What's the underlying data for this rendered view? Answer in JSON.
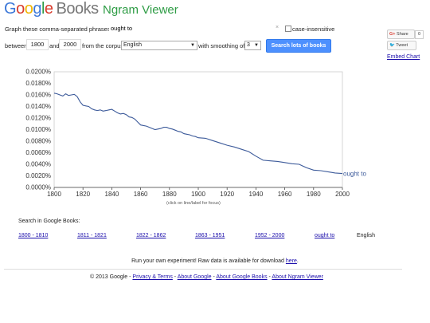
{
  "header": {
    "logo_letters": [
      "G",
      "o",
      "o",
      "g",
      "l",
      "e"
    ],
    "logo_books": "Books",
    "title": "Ngram Viewer"
  },
  "form": {
    "phrases_label": "Graph these comma-separated phrases:",
    "phrases_value": "ought to",
    "clear_glyph": "×",
    "case_insensitive_label": "case-insensitive",
    "between_label": "between",
    "year_start": "1800",
    "and_label": "and",
    "year_end": "2000",
    "corpus_label": "from the corpus",
    "corpus_value": "English",
    "smoothing_label": "with smoothing of",
    "smoothing_value": "3",
    "search_button": "Search lots of books"
  },
  "social": {
    "share_label": "Share",
    "share_count": "0",
    "tweet_label": "Tweet",
    "embed_label": "Embed Chart"
  },
  "chart_data": {
    "type": "line",
    "xlabel": "",
    "ylabel": "",
    "xlim": [
      1800,
      2000
    ],
    "ylim": [
      0,
      0.02
    ],
    "x_ticks": [
      "1800",
      "1820",
      "1840",
      "1860",
      "1880",
      "1900",
      "1920",
      "1940",
      "1960",
      "1980",
      "2000"
    ],
    "y_ticks": [
      "0.0000%",
      "0.0020%",
      "0.0040%",
      "0.0060%",
      "0.0080%",
      "0.0100%",
      "0.0120%",
      "0.0140%",
      "0.0160%",
      "0.0180%",
      "0.0200%"
    ],
    "grid": false,
    "series_color": "#3c5a9a",
    "series": [
      {
        "name": "ought to",
        "x": [
          1800,
          1802,
          1804,
          1806,
          1808,
          1810,
          1812,
          1814,
          1816,
          1818,
          1820,
          1822,
          1824,
          1826,
          1828,
          1830,
          1832,
          1834,
          1836,
          1838,
          1840,
          1842,
          1844,
          1846,
          1848,
          1850,
          1852,
          1854,
          1856,
          1858,
          1860,
          1862,
          1864,
          1866,
          1868,
          1870,
          1872,
          1874,
          1876,
          1878,
          1880,
          1882,
          1884,
          1886,
          1888,
          1890,
          1892,
          1894,
          1896,
          1898,
          1900,
          1905,
          1910,
          1915,
          1920,
          1925,
          1930,
          1935,
          1940,
          1945,
          1950,
          1955,
          1960,
          1965,
          1970,
          1975,
          1980,
          1985,
          1990,
          1995,
          2000
        ],
        "values": [
          0.0163,
          0.0162,
          0.016,
          0.0158,
          0.0162,
          0.0159,
          0.016,
          0.0161,
          0.0157,
          0.0148,
          0.0142,
          0.0141,
          0.014,
          0.0136,
          0.0134,
          0.0133,
          0.0134,
          0.0132,
          0.0133,
          0.0134,
          0.0135,
          0.0132,
          0.0129,
          0.0127,
          0.0128,
          0.0126,
          0.0122,
          0.0121,
          0.0118,
          0.0113,
          0.0108,
          0.0107,
          0.0106,
          0.0104,
          0.0102,
          0.01,
          0.0101,
          0.0102,
          0.0104,
          0.0104,
          0.0102,
          0.0101,
          0.0099,
          0.0097,
          0.0096,
          0.0093,
          0.0092,
          0.0091,
          0.0089,
          0.0088,
          0.0086,
          0.0085,
          0.0081,
          0.0077,
          0.0073,
          0.007,
          0.0066,
          0.0062,
          0.0054,
          0.0047,
          0.0046,
          0.0045,
          0.0043,
          0.0041,
          0.004,
          0.0034,
          0.003,
          0.0029,
          0.0027,
          0.0025,
          0.0024
        ]
      }
    ]
  },
  "chart_note": "(click on line/label for focus)",
  "search_in_books": {
    "label": "Search in Google Books:",
    "ranges": [
      "1800 - 1810",
      "1811 - 1821",
      "1822 - 1862",
      "1863 - 1951",
      "1952 - 2000"
    ],
    "phrase": "ought to",
    "corpus": "English"
  },
  "raw_data": {
    "text": "Run your own experiment! Raw data is available for download",
    "link": "here",
    "end": "."
  },
  "footer": {
    "copyright": "© 2013 Google -",
    "links": [
      "Privacy & Terms",
      "About Google",
      "About Google Books",
      "About Ngram Viewer"
    ],
    "sep": " - "
  }
}
